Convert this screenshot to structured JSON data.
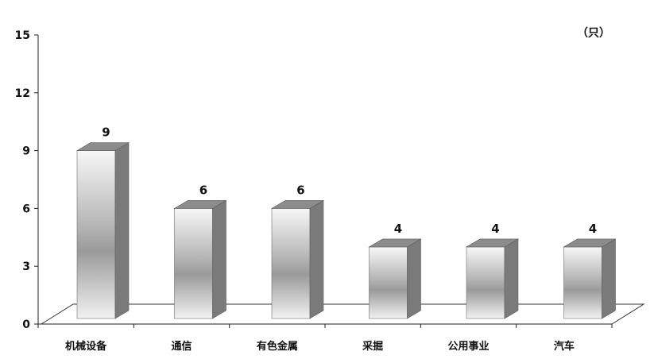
{
  "chart_data": {
    "type": "bar",
    "unit": "（只）",
    "categories": [
      "机械设备",
      "通信",
      "有色金属",
      "采掘",
      "公用事业",
      "汽车"
    ],
    "values": [
      9,
      6,
      6,
      4,
      4,
      4
    ],
    "data_labels": [
      "9",
      "6",
      "6",
      "4",
      "4",
      "4"
    ],
    "ylim": [
      0,
      15
    ],
    "yticks": [
      0,
      3,
      6,
      9,
      12,
      15
    ],
    "grid": false,
    "legend": "none",
    "style": "3d-gradient",
    "colors": {
      "bar_light": "#f7f7f7",
      "bar_mid": "#9a9a9a",
      "bar_side": "#7a7a7a",
      "bar_top": "#8c8c8c",
      "axis": "#222222"
    }
  }
}
